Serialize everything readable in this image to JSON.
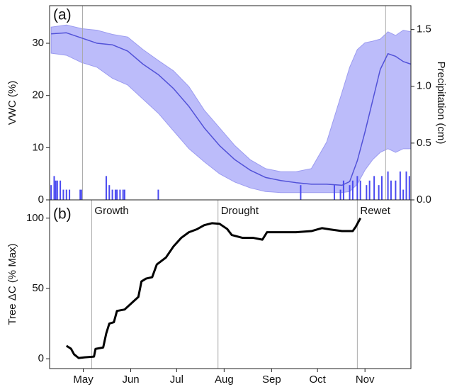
{
  "chart_data": [
    {
      "type": "line",
      "panel_label": "(a)",
      "ylabel": "VWC (%)",
      "y2label": "Precipitation (cm)",
      "x": [
        100,
        110,
        120,
        130,
        140,
        150,
        160,
        170,
        180,
        190,
        200,
        210,
        220,
        230,
        240,
        250,
        260,
        270,
        280,
        290,
        295,
        300,
        305,
        310,
        315,
        320,
        325,
        330,
        335
      ],
      "xlim": [
        99,
        335
      ],
      "ylim": [
        0,
        37.2
      ],
      "yticks": [
        0,
        10,
        20,
        30
      ],
      "y2lim": [
        0,
        1.71
      ],
      "y2ticks": [
        {
          "value": 0,
          "label": "0.0"
        },
        0.5,
        {
          "value": 1,
          "label": "1.0"
        },
        1.5
      ],
      "band": {
        "color": "#bcbcfa",
        "edge": "#9c9cf0",
        "upper": [
          33.1,
          33.5,
          32.8,
          32.5,
          31.7,
          31.2,
          28.8,
          26.7,
          24.7,
          21.7,
          17.2,
          13.8,
          10.4,
          7.7,
          6.0,
          5.4,
          5.4,
          6.0,
          11.1,
          20.6,
          25.4,
          28.8,
          30.1,
          30.4,
          30.8,
          32.2,
          31.5,
          32.5,
          32.2
        ],
        "lower": [
          28.1,
          27.7,
          26.3,
          25.4,
          23.3,
          22.0,
          19.3,
          16.6,
          13.2,
          9.8,
          7.3,
          5.0,
          3.4,
          2.3,
          1.6,
          1.4,
          1.4,
          1.4,
          1.4,
          1.4,
          1.6,
          3.0,
          5.7,
          7.7,
          9.1,
          9.8,
          9.1,
          9.8,
          9.8
        ]
      },
      "series": [
        {
          "color": "#5252d8",
          "values": [
            31.8,
            32.0,
            31.0,
            30.0,
            29.7,
            28.5,
            26.0,
            24.0,
            21.3,
            17.9,
            13.8,
            10.4,
            7.7,
            5.7,
            4.3,
            3.7,
            3.3,
            3.0,
            3.0,
            2.8,
            3.5,
            7.5,
            13.0,
            19.0,
            25.0,
            28.0,
            27.5,
            26.5,
            26.0
          ]
        }
      ],
      "bars": {
        "axis": "y2",
        "color": "#4a4af0",
        "x": [
          100,
          102,
          103,
          104,
          106,
          108,
          110,
          112,
          119,
          120,
          136,
          138,
          140,
          142,
          143,
          145,
          147,
          148,
          170,
          263,
          285,
          289,
          291,
          295,
          297,
          300,
          302,
          306,
          308,
          311,
          314,
          316,
          320,
          322,
          325,
          328,
          330,
          332,
          334
        ],
        "values": [
          0.13,
          0.21,
          0.17,
          0.17,
          0.17,
          0.09,
          0.09,
          0.09,
          0.09,
          0.09,
          0.21,
          0.13,
          0.09,
          0.09,
          0.09,
          0.09,
          0.09,
          0.09,
          0.09,
          0.13,
          0.13,
          0.09,
          0.17,
          0.13,
          0.17,
          0.21,
          0.17,
          0.13,
          0.17,
          0.21,
          0.13,
          0.21,
          0.25,
          0.17,
          0.17,
          0.25,
          0.09,
          0.25,
          0.21
        ]
      },
      "vlines": [
        120.5,
        318.5
      ]
    },
    {
      "type": "line",
      "panel_label": "(b)",
      "ylabel": "Tree ΔC (% Max)",
      "x": [
        110,
        113,
        115,
        118,
        122,
        128,
        129,
        134,
        136,
        138,
        141,
        143,
        148,
        153,
        157,
        159,
        162,
        166,
        169,
        175,
        180,
        185,
        190,
        195,
        200,
        205,
        210,
        215,
        218,
        225,
        232,
        238,
        241,
        250,
        260,
        270,
        277,
        282,
        290,
        297,
        299,
        302
      ],
      "xlim": [
        99,
        335
      ],
      "xticks": [
        {
          "value": 121,
          "label": "May"
        },
        {
          "value": 152,
          "label": "Jun"
        },
        {
          "value": 182,
          "label": "Jul"
        },
        {
          "value": 213,
          "label": "Aug"
        },
        {
          "value": 244,
          "label": "Sep"
        },
        {
          "value": 274,
          "label": "Oct"
        },
        {
          "value": 305,
          "label": "Nov"
        }
      ],
      "ylim": [
        -7,
        113
      ],
      "yticks": [
        0,
        50,
        100
      ],
      "series": [
        {
          "color": "#000000",
          "values": [
            9.2,
            7.1,
            3.1,
            0.5,
            1,
            1.5,
            7,
            8,
            18,
            25,
            26,
            34,
            35,
            40,
            44,
            55,
            57,
            58,
            67,
            72,
            80,
            86,
            90,
            92,
            95,
            96.4,
            96,
            92.3,
            88,
            86,
            86,
            84.7,
            90,
            90,
            90,
            90.8,
            92.9,
            92,
            90.8,
            90.8,
            93.9,
            100
          ]
        }
      ],
      "vlines": [
        126.5,
        209,
        300
      ],
      "vline_labels": [
        "Growth",
        "Drought",
        "Rewet"
      ]
    }
  ]
}
